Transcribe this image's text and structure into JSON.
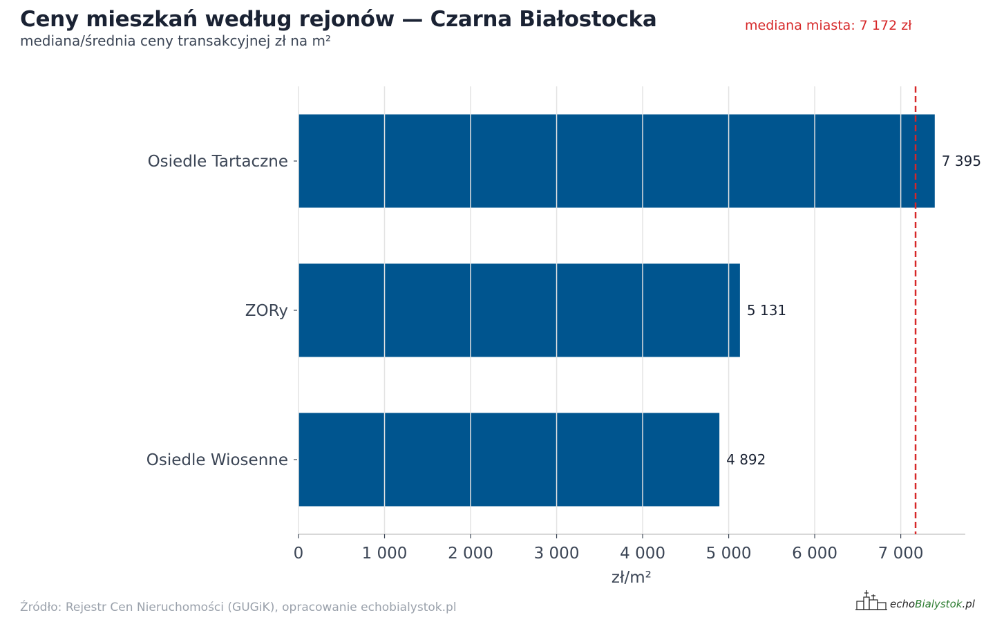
{
  "title": "Ceny mieszkań według rejonów — Czarna Białostocka",
  "subtitle": "mediana/średnia ceny transakcyjnej zł na m²",
  "median_label": "mediana miasta: 7 172 zł",
  "source": "Źródło: Rejestr Cen Nieruchomości (GUGiK), opracowanie echobialystok.pl",
  "logo": {
    "part1": "echo",
    "part2": "Bialystok",
    "part3": ".pl"
  },
  "colors": {
    "bar": "#00558f",
    "median_line": "#d62728",
    "grid": "#e3e3e3"
  },
  "chart_data": {
    "type": "bar",
    "orientation": "horizontal",
    "categories": [
      "Osiedle Tartaczne",
      "ZORy",
      "Osiedle Wiosenne"
    ],
    "values": [
      7395,
      5131,
      4892
    ],
    "value_labels": [
      "7 395",
      "5 131",
      "4 892"
    ],
    "xlabel": "zł/m²",
    "xlim": [
      0,
      7750
    ],
    "x_ticks": [
      0,
      1000,
      2000,
      3000,
      4000,
      5000,
      6000,
      7000
    ],
    "x_tick_labels": [
      "0",
      "1 000",
      "2 000",
      "3 000",
      "4 000",
      "5 000",
      "6 000",
      "7 000"
    ],
    "reference_line": {
      "value": 7172,
      "style": "dashed"
    },
    "grid": "vertical"
  }
}
